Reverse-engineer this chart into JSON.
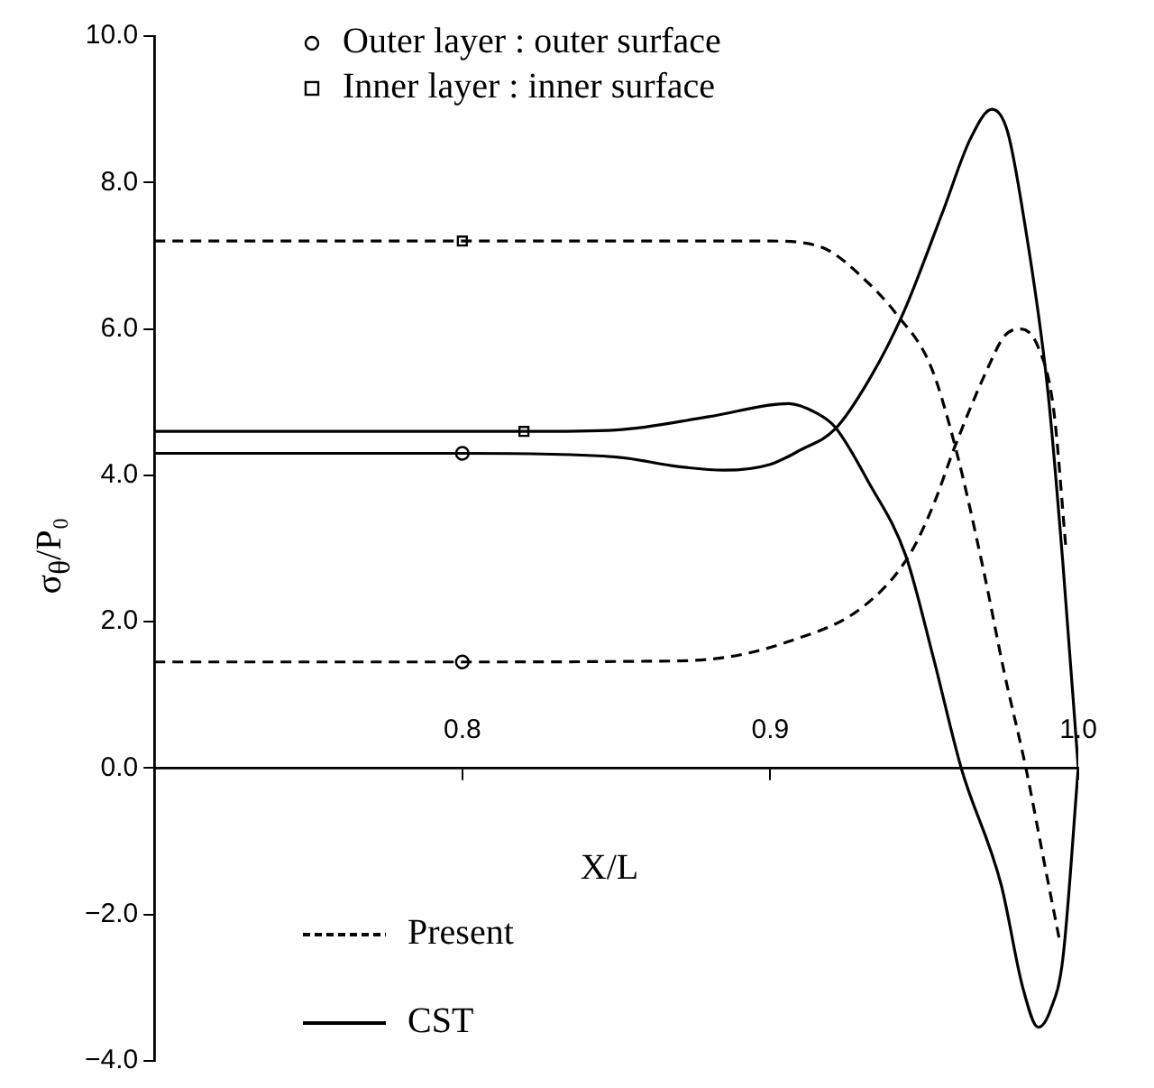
{
  "chart_data": {
    "type": "line",
    "xlabel": "X/L",
    "ylabel": "σ$_{θ}$/P₀",
    "xlim": [
      0.7,
      1.0
    ],
    "xticks": [
      0.8,
      0.9,
      {
        "value": 1.0,
        "label": "1.0"
      }
    ],
    "ylim": [
      -4,
      10
    ],
    "yticks": [
      {
        "value": -4,
        "label": "−4.0"
      },
      {
        "value": -2,
        "label": "−2.0"
      },
      {
        "value": 0,
        "label": "0.0"
      },
      {
        "value": 2,
        "label": "2.0"
      },
      {
        "value": 4,
        "label": "4.0"
      },
      {
        "value": 6,
        "label": "6.0"
      },
      {
        "value": 8,
        "label": "8.0"
      },
      {
        "value": 10,
        "label": "10.0"
      }
    ],
    "grid": false,
    "legend": "top left",
    "series": [
      {
        "name": "Present",
        "color": "#000000",
        "line_style": "dashed",
        "x": [
          0.7,
          0.8,
          0.86,
          0.881,
          0.906,
          0.93,
          0.945,
          0.953,
          0.96,
          0.971,
          0.976,
          0.981,
          0.987,
          0.992,
          0.996
        ],
        "values": [
          1.45,
          1.45,
          1.46,
          1.49,
          1.73,
          2.2,
          2.9,
          3.6,
          4.4,
          5.5,
          5.9,
          6.0,
          5.75,
          4.9,
          3.0
        ]
      },
      {
        "color": "#000000",
        "line_style": "dashed",
        "x": [
          0.7,
          0.8,
          0.9,
          0.91,
          0.919,
          0.93,
          0.941,
          0.952,
          0.96,
          0.969,
          0.976,
          0.983,
          0.989,
          0.994
        ],
        "values": [
          7.2,
          7.2,
          7.2,
          7.18,
          7.07,
          6.7,
          6.2,
          5.5,
          4.4,
          2.75,
          1.3,
          0,
          -1.3,
          -2.37
        ]
      },
      {
        "name": "CST",
        "color": "#000000",
        "line_style": "solid",
        "x": [
          0.7,
          0.8,
          0.85,
          0.87,
          0.885,
          0.9,
          0.91,
          0.921,
          0.932,
          0.943,
          0.956,
          0.965,
          0.972,
          0.977,
          0.982,
          0.99,
          0.995,
          1.0
        ],
        "values": [
          4.3,
          4.3,
          4.25,
          4.12,
          4.07,
          4.15,
          4.35,
          4.63,
          5.3,
          6.2,
          7.6,
          8.6,
          9.0,
          8.7,
          7.6,
          5.2,
          2.8,
          0
        ]
      },
      {
        "color": "#000000",
        "line_style": "solid",
        "x": [
          0.7,
          0.82,
          0.85,
          0.88,
          0.906,
          0.915,
          0.921,
          0.932,
          0.944,
          0.953,
          0.962,
          0.975,
          0.982,
          0.987,
          0.991,
          0.995,
          1.0
        ],
        "values": [
          4.6,
          4.6,
          4.62,
          4.8,
          4.98,
          4.85,
          4.66,
          3.9,
          2.9,
          1.5,
          0,
          -1.6,
          -3.0,
          -3.54,
          -3.3,
          -2.6,
          0
        ]
      },
      {
        "name": "Outer layer : outer surface",
        "type": "scatter",
        "color": "#000000",
        "marker": "circle",
        "x": [
          0.8,
          0.8
        ],
        "values": [
          1.45,
          4.3
        ]
      },
      {
        "name": "Inner layer : inner surface",
        "type": "scatter",
        "color": "#000000",
        "marker": "square",
        "x": [
          0.8,
          0.82
        ],
        "values": [
          7.2,
          4.6
        ]
      }
    ]
  }
}
